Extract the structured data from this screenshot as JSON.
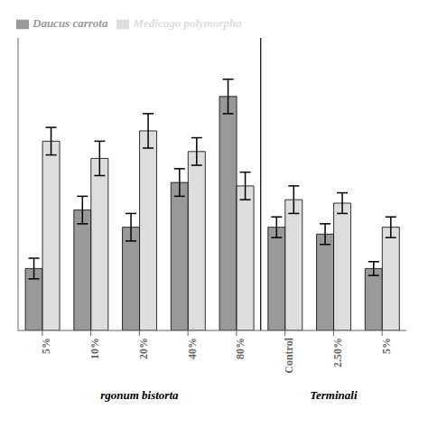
{
  "chart_data": {
    "type": "bar",
    "categories": [
      "5%",
      "10%",
      "20%",
      "40%",
      "80%",
      "Control",
      "2.50%",
      "5%"
    ],
    "series": [
      {
        "name": "Daucus carrota",
        "color": "#999999",
        "values": [
          18,
          35,
          30,
          43,
          68,
          30,
          28,
          18
        ],
        "errors": [
          3,
          4,
          4,
          4,
          5,
          3,
          3,
          2
        ]
      },
      {
        "name": "Medicago polymorpha",
        "color": "#dddddd",
        "values": [
          55,
          50,
          58,
          52,
          42,
          38,
          37,
          30
        ],
        "errors": [
          4,
          5,
          5,
          4,
          4,
          4,
          3,
          3
        ]
      }
    ],
    "ylim": [
      0,
      85
    ],
    "tick_labels": "x",
    "legend": "top left",
    "grid": false,
    "annotations": [
      "rgonum bistorta",
      "Terminali"
    ]
  }
}
